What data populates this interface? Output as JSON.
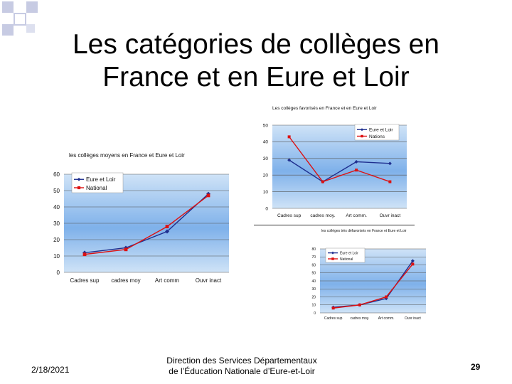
{
  "slide": {
    "title_line1": "Les catégories de collèges en",
    "title_line2": "France et en Eure et Loir",
    "date": "2/18/2021",
    "footer_line1": "Direction des Services Départementaux",
    "footer_line2": "de l’Éducation Nationale d’Eure-et-Loir",
    "page_number": "29"
  },
  "colors": {
    "eure_et_loir": "#1f2f8f",
    "national": "#dd1111",
    "plot_bg_top": "#cfe3f7",
    "plot_bg_mid": "#7fb1ea",
    "deco_square": "#c7cbe3"
  },
  "chart_data": [
    {
      "id": "left",
      "type": "line",
      "title": "les collèges moyens en France et Eure et Loir",
      "categories": [
        "Cadres sup",
        "cadres moy",
        "Art comm",
        "Ouvr inact"
      ],
      "ylim": [
        0,
        60
      ],
      "yticks": [
        "0",
        "10",
        "20",
        "30",
        "40",
        "50",
        "60"
      ],
      "grid": true,
      "legend": "top-left",
      "series": [
        {
          "name": "Eure et Loir",
          "values": [
            12,
            15,
            25,
            48
          ]
        },
        {
          "name": "National",
          "values": [
            11,
            14,
            28,
            47
          ]
        }
      ]
    },
    {
      "id": "top",
      "type": "line",
      "title": "Les collèges favorisés en France et en Eure et Loir",
      "categories": [
        "Cadres sup",
        "cadres moy.",
        "Art comm.",
        "Ouvr inact"
      ],
      "ylim": [
        0,
        50
      ],
      "yticks": [
        "0",
        "10",
        "20",
        "30",
        "40",
        "50"
      ],
      "grid": true,
      "legend": "top-right",
      "series": [
        {
          "name": "Eure et Loir",
          "values": [
            29,
            16,
            28,
            27
          ]
        },
        {
          "name": "Nations",
          "values": [
            43,
            16,
            23,
            16
          ]
        }
      ]
    },
    {
      "id": "bottom",
      "type": "line",
      "title": "les collèges très défavorisés en France et Eure et Loir",
      "categories": [
        "Cadres sup",
        "cadres moy.",
        "Art comm.",
        "Ouvr inact"
      ],
      "ylim": [
        0,
        80
      ],
      "yticks": [
        "0",
        "10",
        "20",
        "30",
        "40",
        "50",
        "60",
        "70",
        "80"
      ],
      "grid": true,
      "legend": "top-left",
      "series": [
        {
          "name": "Eure et Loir",
          "values": [
            7,
            10,
            18,
            65
          ]
        },
        {
          "name": "National",
          "values": [
            6,
            10,
            20,
            61
          ]
        }
      ]
    }
  ]
}
